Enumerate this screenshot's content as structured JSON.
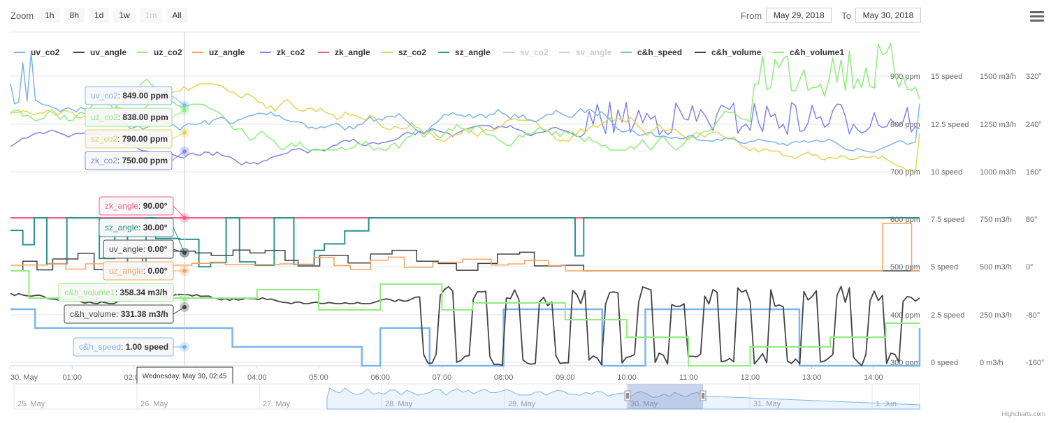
{
  "zoom": {
    "label": "Zoom",
    "buttons": [
      {
        "label": "1h",
        "disabled": false
      },
      {
        "label": "8h",
        "disabled": false
      },
      {
        "label": "1d",
        "disabled": false
      },
      {
        "label": "1w",
        "disabled": false
      },
      {
        "label": "1m",
        "disabled": true
      },
      {
        "label": "All",
        "disabled": false
      }
    ]
  },
  "range": {
    "from_label": "From",
    "from_value": "May 29, 2018",
    "to_label": "To",
    "to_value": "May 30, 2018"
  },
  "menu_icon": "hamburger-icon",
  "credits": "Highcharts.com",
  "chart_data": {
    "type": "line",
    "x_range": [
      "2018-05-30 00:00",
      "2018-05-30 14:45"
    ],
    "x_tick_labels": [
      "30. May",
      "01:00",
      "02:00",
      "03:00",
      "04:00",
      "05:00",
      "06:00",
      "07:00",
      "08:00",
      "09:00",
      "10:00",
      "11:00",
      "12:00",
      "13:00",
      "14:00"
    ],
    "crosshair_time": "Wednesday, May 30, 02:45",
    "legend": {
      "position": "top",
      "items": [
        {
          "name": "uv_co2",
          "color": "#7cb5ec",
          "visible": true
        },
        {
          "name": "uv_angle",
          "color": "#434348",
          "visible": true
        },
        {
          "name": "uz_co2",
          "color": "#90ed7d",
          "visible": true
        },
        {
          "name": "uz_angle",
          "color": "#f7a35c",
          "visible": true
        },
        {
          "name": "zk_co2",
          "color": "#8085e9",
          "visible": true
        },
        {
          "name": "zk_angle",
          "color": "#f15c80",
          "visible": true
        },
        {
          "name": "sz_co2",
          "color": "#e4d354",
          "visible": true
        },
        {
          "name": "sz_angle",
          "color": "#2b908f",
          "visible": true
        },
        {
          "name": "sv_co2",
          "color": "#cccccc",
          "visible": false
        },
        {
          "name": "sv_angle",
          "color": "#cccccc",
          "visible": false
        },
        {
          "name": "c&h_speed",
          "color": "#7cb5ec",
          "visible": true
        },
        {
          "name": "c&h_volume",
          "color": "#434348",
          "visible": true
        },
        {
          "name": "c&h_volume1",
          "color": "#90ed7d",
          "visible": true
        }
      ]
    },
    "axes": {
      "ppm": {
        "labels": [
          "900 ppm",
          "800 ppm",
          "700 ppm",
          "600 ppm",
          "500 ppm",
          "400 ppm",
          "300 ppm"
        ],
        "range": [
          300,
          900
        ]
      },
      "speed": {
        "labels": [
          "15 speed",
          "12.5 speed",
          "10 speed",
          "7.5 speed",
          "5 speed",
          "2.5 speed",
          "0 speed"
        ],
        "range": [
          0,
          15
        ]
      },
      "volume": {
        "labels": [
          "1500 m3/h",
          "1250 m3/h",
          "1000 m3/h",
          "750 m3/h",
          "500 m3/h",
          "250 m3/h",
          "0 m3/h"
        ],
        "range": [
          0,
          1500
        ]
      },
      "angle": {
        "labels": [
          "320°",
          "240°",
          "160°",
          "80°",
          "0°",
          "-80°",
          "-160°"
        ],
        "range": [
          -160,
          320
        ]
      }
    },
    "tooltips": [
      {
        "series": "uv_co2",
        "color": "#7cb5ec",
        "label": "uv_co2",
        "value": "849.00 ppm"
      },
      {
        "series": "uz_co2",
        "color": "#90ed7d",
        "label": "uz_co2",
        "value": "838.00 ppm"
      },
      {
        "series": "sz_co2",
        "color": "#e4d354",
        "label": "sz_co2",
        "value": "790.00 ppm"
      },
      {
        "series": "zk_co2",
        "color": "#8085e9",
        "label": "zk_co2",
        "value": "750.00 ppm"
      },
      {
        "series": "zk_angle",
        "color": "#f15c80",
        "label": "zk_angle",
        "value": "90.00°"
      },
      {
        "series": "sz_angle",
        "color": "#2b908f",
        "label": "sz_angle",
        "value": "30.00°"
      },
      {
        "series": "uv_angle",
        "color": "#434348",
        "label": "uv_angle",
        "value": "0.00°"
      },
      {
        "series": "uz_angle",
        "color": "#f7a35c",
        "label": "uz_angle",
        "value": "0.00°"
      },
      {
        "series": "c&h_volume1",
        "color": "#90ed7d",
        "label": "c&h_volume1",
        "value": "358.34 m3/h"
      },
      {
        "series": "c&h_volume",
        "color": "#434348",
        "label": "c&h_volume",
        "value": "331.38 m3/h"
      },
      {
        "series": "c&h_speed",
        "color": "#7cb5ec",
        "label": "c&h_speed",
        "value": "1.00 speed"
      }
    ],
    "navigator": {
      "tick_labels": [
        "25. May",
        "26. May",
        "27. May",
        "28. May",
        "29. May",
        "30. May",
        "31. May",
        "1. Jun"
      ],
      "selected_range": [
        "2018-05-30 00:00",
        "2018-05-30 14:45"
      ]
    }
  }
}
